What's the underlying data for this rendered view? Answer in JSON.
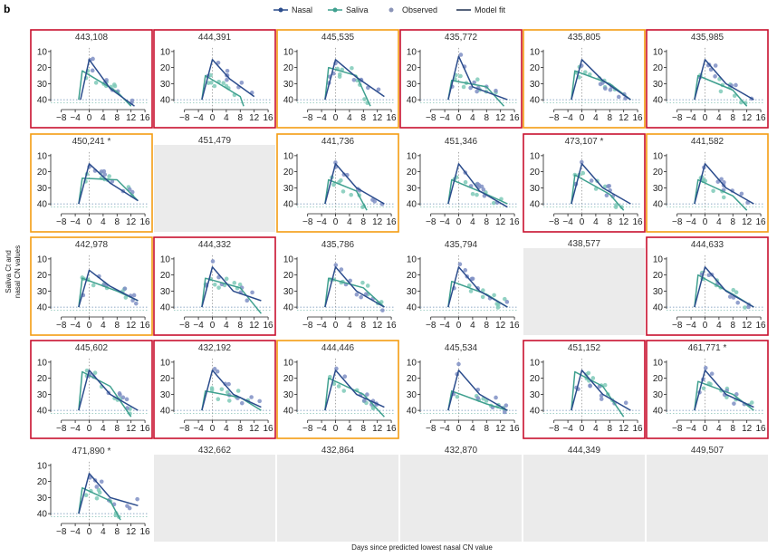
{
  "figure": {
    "panel_label": "b",
    "xlabel": "Days since predicted lowest nasal CN value",
    "ylabel_line1": "Saliva Ct and",
    "ylabel_line2": "nasal CN values"
  },
  "legend": [
    {
      "label": "Nasal",
      "kind": "line-point",
      "color": "#2b4c8c"
    },
    {
      "label": "Saliva",
      "kind": "line-point",
      "color": "#3fa08f"
    },
    {
      "label": "Observed",
      "kind": "point",
      "color": "#8b95b8"
    },
    {
      "label": "Model fit",
      "kind": "line",
      "color": "#1f3050"
    }
  ],
  "colors": {
    "nasal": "#2b4c8c",
    "nasal_points": "#7f8fc4",
    "saliva": "#3fa08f",
    "saliva_points": "#7fcab8",
    "red_border": "#c8102e",
    "orange_border": "#f39c12",
    "empty_panel": "#ebebeb"
  },
  "chart_data": {
    "type": "line",
    "xticks": [
      -8,
      -4,
      0,
      4,
      8,
      12,
      16
    ],
    "yticks": [
      10,
      20,
      30,
      40
    ],
    "xlim": [
      -10,
      16.5
    ],
    "ylim": [
      45,
      5
    ],
    "y_axis_reversed": true,
    "panels": [
      {
        "id": "443,108",
        "border": "red",
        "nasal": [
          [
            -2.5,
            40
          ],
          [
            0,
            15
          ],
          [
            6,
            33
          ],
          [
            13,
            44
          ]
        ],
        "saliva": [
          [
            -3,
            40
          ],
          [
            -2,
            22
          ],
          [
            8,
            35
          ],
          [
            12,
            44
          ]
        ]
      },
      {
        "id": "444,391",
        "border": "red",
        "nasal": [
          [
            -3,
            40
          ],
          [
            0,
            15
          ],
          [
            5,
            27
          ],
          [
            12,
            38
          ]
        ],
        "saliva": [
          [
            -3,
            40
          ],
          [
            -2,
            25
          ],
          [
            8,
            38
          ],
          [
            9,
            44
          ]
        ]
      },
      {
        "id": "445,535",
        "border": "orange",
        "nasal": [
          [
            -3,
            40
          ],
          [
            0,
            15
          ],
          [
            6,
            26
          ],
          [
            14,
            38
          ]
        ],
        "saliva": [
          [
            -3,
            40
          ],
          [
            -2,
            20
          ],
          [
            6,
            25
          ],
          [
            10,
            44
          ]
        ]
      },
      {
        "id": "435,772",
        "border": "red",
        "nasal": [
          [
            -3,
            40
          ],
          [
            0,
            13
          ],
          [
            4,
            32
          ],
          [
            14,
            40
          ]
        ],
        "saliva": [
          [
            -3,
            40
          ],
          [
            -2,
            28
          ],
          [
            8,
            32
          ],
          [
            13,
            44
          ]
        ]
      },
      {
        "id": "435,805",
        "border": "orange",
        "nasal": [
          [
            -3,
            40
          ],
          [
            0,
            15
          ],
          [
            6,
            28
          ],
          [
            14,
            40
          ]
        ],
        "saliva": [
          [
            -3,
            40
          ],
          [
            -2,
            22
          ],
          [
            8,
            30
          ],
          [
            14,
            40
          ]
        ]
      },
      {
        "id": "435,985",
        "border": "red",
        "nasal": [
          [
            -3,
            40
          ],
          [
            0,
            15
          ],
          [
            6,
            30
          ],
          [
            14,
            40
          ]
        ],
        "saliva": [
          [
            -3,
            40
          ],
          [
            -2,
            25
          ],
          [
            8,
            34
          ],
          [
            12,
            44
          ]
        ]
      },
      {
        "id": "450,241 *",
        "border": "orange",
        "nasal": [
          [
            -3,
            40
          ],
          [
            0,
            15
          ],
          [
            6,
            27
          ],
          [
            14,
            38
          ]
        ],
        "saliva": [
          [
            -3,
            40
          ],
          [
            -2,
            24
          ],
          [
            8,
            25
          ],
          [
            14,
            38
          ]
        ]
      },
      {
        "id": "451,479",
        "border": "none",
        "empty": true
      },
      {
        "id": "441,736",
        "border": "orange",
        "nasal": [
          [
            -3,
            40
          ],
          [
            0,
            15
          ],
          [
            6,
            30
          ],
          [
            14,
            40
          ]
        ],
        "saliva": [
          [
            -3,
            40
          ],
          [
            -2,
            25
          ],
          [
            6,
            32
          ],
          [
            9,
            44
          ]
        ]
      },
      {
        "id": "451,346",
        "border": "none",
        "nasal": [
          [
            -3,
            40
          ],
          [
            0,
            15
          ],
          [
            6,
            32
          ],
          [
            14,
            42
          ]
        ],
        "saliva": [
          [
            -3,
            40
          ],
          [
            -2,
            25
          ],
          [
            8,
            34
          ],
          [
            14,
            40
          ]
        ]
      },
      {
        "id": "473,107 *",
        "border": "red",
        "nasal": [
          [
            -3,
            40
          ],
          [
            0,
            15
          ],
          [
            6,
            30
          ],
          [
            14,
            40
          ]
        ],
        "saliva": [
          [
            -3,
            40
          ],
          [
            -2,
            22
          ],
          [
            8,
            34
          ],
          [
            12,
            44
          ]
        ]
      },
      {
        "id": "441,582",
        "border": "orange",
        "nasal": [
          [
            -3,
            40
          ],
          [
            0,
            15
          ],
          [
            6,
            30
          ],
          [
            14,
            40
          ]
        ],
        "saliva": [
          [
            -3,
            40
          ],
          [
            -2,
            25
          ],
          [
            8,
            35
          ],
          [
            12,
            44
          ]
        ]
      },
      {
        "id": "442,978",
        "border": "orange",
        "nasal": [
          [
            -3,
            40
          ],
          [
            0,
            17
          ],
          [
            6,
            27
          ],
          [
            14,
            36
          ]
        ],
        "saliva": [
          [
            -3,
            40
          ],
          [
            -2,
            22
          ],
          [
            8,
            30
          ],
          [
            14,
            36
          ]
        ]
      },
      {
        "id": "444,332",
        "border": "red",
        "nasal": [
          [
            -3,
            40
          ],
          [
            0,
            15
          ],
          [
            6,
            30
          ],
          [
            14,
            36
          ]
        ],
        "saliva": [
          [
            -3,
            40
          ],
          [
            -2,
            22
          ],
          [
            8,
            28
          ],
          [
            14,
            44
          ]
        ]
      },
      {
        "id": "435,786",
        "border": "none",
        "nasal": [
          [
            -3,
            40
          ],
          [
            0,
            15
          ],
          [
            6,
            30
          ],
          [
            14,
            40
          ]
        ],
        "saliva": [
          [
            -3,
            40
          ],
          [
            -2,
            22
          ],
          [
            8,
            28
          ],
          [
            14,
            40
          ]
        ]
      },
      {
        "id": "435,794",
        "border": "none",
        "nasal": [
          [
            -3,
            40
          ],
          [
            0,
            15
          ],
          [
            6,
            30
          ],
          [
            14,
            40
          ]
        ],
        "saliva": [
          [
            -3,
            40
          ],
          [
            -2,
            24
          ],
          [
            8,
            32
          ],
          [
            14,
            40
          ]
        ]
      },
      {
        "id": "438,577",
        "border": "none",
        "empty": true
      },
      {
        "id": "444,633",
        "border": "red",
        "nasal": [
          [
            -3,
            40
          ],
          [
            0,
            15
          ],
          [
            6,
            30
          ],
          [
            14,
            40
          ]
        ],
        "saliva": [
          [
            -3,
            40
          ],
          [
            -2,
            20
          ],
          [
            8,
            32
          ],
          [
            14,
            40
          ]
        ]
      },
      {
        "id": "445,602",
        "border": "red",
        "nasal": [
          [
            -3,
            40
          ],
          [
            0,
            15
          ],
          [
            6,
            30
          ],
          [
            14,
            40
          ]
        ],
        "saliva": [
          [
            -3,
            40
          ],
          [
            -2,
            16
          ],
          [
            6,
            25
          ],
          [
            12,
            44
          ]
        ]
      },
      {
        "id": "432,192",
        "border": "red",
        "nasal": [
          [
            -3,
            40
          ],
          [
            0,
            15
          ],
          [
            6,
            30
          ],
          [
            14,
            38
          ]
        ],
        "saliva": [
          [
            -3,
            40
          ],
          [
            -2,
            28
          ],
          [
            8,
            32
          ],
          [
            14,
            40
          ]
        ]
      },
      {
        "id": "444,446",
        "border": "orange",
        "nasal": [
          [
            -3,
            40
          ],
          [
            0,
            15
          ],
          [
            6,
            30
          ],
          [
            14,
            38
          ]
        ],
        "saliva": [
          [
            -3,
            40
          ],
          [
            -2,
            20
          ],
          [
            8,
            30
          ],
          [
            14,
            44
          ]
        ]
      },
      {
        "id": "445,534",
        "border": "none",
        "nasal": [
          [
            -3,
            40
          ],
          [
            0,
            15
          ],
          [
            6,
            30
          ],
          [
            14,
            40
          ]
        ],
        "saliva": [
          [
            -3,
            40
          ],
          [
            -2,
            28
          ],
          [
            8,
            36
          ],
          [
            14,
            40
          ]
        ]
      },
      {
        "id": "451,152",
        "border": "red",
        "nasal": [
          [
            -3,
            40
          ],
          [
            0,
            15
          ],
          [
            6,
            30
          ],
          [
            14,
            40
          ]
        ],
        "saliva": [
          [
            -3,
            40
          ],
          [
            -2,
            16
          ],
          [
            6,
            25
          ],
          [
            12,
            44
          ]
        ]
      },
      {
        "id": "461,771 *",
        "border": "red",
        "nasal": [
          [
            -3,
            40
          ],
          [
            0,
            15
          ],
          [
            6,
            30
          ],
          [
            14,
            38
          ]
        ],
        "saliva": [
          [
            -3,
            40
          ],
          [
            -2,
            22
          ],
          [
            8,
            30
          ],
          [
            14,
            40
          ]
        ]
      },
      {
        "id": "471,890 *",
        "border": "none",
        "nasal": [
          [
            -3,
            40
          ],
          [
            0,
            15
          ],
          [
            6,
            30
          ],
          [
            14,
            35
          ]
        ],
        "saliva": [
          [
            -3,
            40
          ],
          [
            -2,
            24
          ],
          [
            6,
            32
          ],
          [
            9,
            44
          ]
        ]
      },
      {
        "id": "432,662",
        "border": "none",
        "empty": true
      },
      {
        "id": "432,864",
        "border": "none",
        "empty": true
      },
      {
        "id": "432,870",
        "border": "none",
        "empty": true
      },
      {
        "id": "444,349",
        "border": "none",
        "empty": true
      },
      {
        "id": "449,507",
        "border": "none",
        "empty": true
      }
    ]
  }
}
